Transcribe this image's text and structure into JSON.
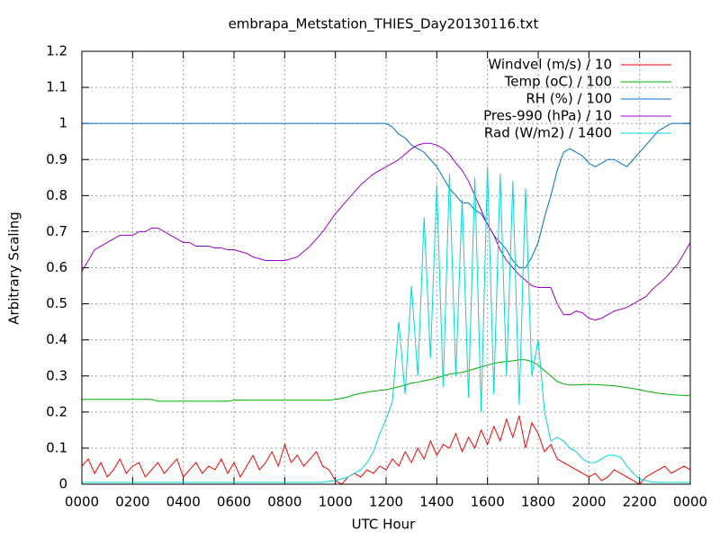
{
  "chart_data": {
    "type": "line",
    "title": "embrapa_Metstation_THIES_Day20130116.txt",
    "x_label": "UTC Hour",
    "y_label": "Arbitrary Scaling",
    "xlim": [
      0,
      24
    ],
    "xticks": [
      {
        "value": 0,
        "label": "0000"
      },
      {
        "value": 2,
        "label": "0200"
      },
      {
        "value": 4,
        "label": "0400"
      },
      {
        "value": 6,
        "label": "0600"
      },
      {
        "value": 8,
        "label": "0800"
      },
      {
        "value": 10,
        "label": "1000"
      },
      {
        "value": 12,
        "label": "1200"
      },
      {
        "value": 14,
        "label": "1400"
      },
      {
        "value": 16,
        "label": "1600"
      },
      {
        "value": 18,
        "label": "1800"
      },
      {
        "value": 20,
        "label": "2000"
      },
      {
        "value": 22,
        "label": "2200"
      },
      {
        "value": 24,
        "label": "0000"
      }
    ],
    "ylim": [
      0,
      1.2
    ],
    "yticks": [
      0,
      0.1,
      0.2,
      0.3,
      0.4,
      0.5,
      0.6,
      0.7,
      0.8,
      0.9,
      1,
      1.1,
      1.2
    ],
    "grid": true,
    "legend": "top-right",
    "x": [
      0,
      0.25,
      0.5,
      0.75,
      1,
      1.25,
      1.5,
      1.75,
      2,
      2.25,
      2.5,
      2.75,
      3,
      3.25,
      3.5,
      3.75,
      4,
      4.25,
      4.5,
      4.75,
      5,
      5.25,
      5.5,
      5.75,
      6,
      6.25,
      6.5,
      6.75,
      7,
      7.25,
      7.5,
      7.75,
      8,
      8.25,
      8.5,
      8.75,
      9,
      9.25,
      9.5,
      9.75,
      10,
      10.25,
      10.5,
      10.75,
      11,
      11.25,
      11.5,
      11.75,
      12,
      12.25,
      12.5,
      12.75,
      13,
      13.25,
      13.5,
      13.75,
      14,
      14.25,
      14.5,
      14.75,
      15,
      15.25,
      15.5,
      15.75,
      16,
      16.25,
      16.5,
      16.75,
      17,
      17.25,
      17.5,
      17.75,
      18,
      18.25,
      18.5,
      18.75,
      19,
      19.25,
      19.5,
      19.75,
      20,
      20.25,
      20.5,
      20.75,
      21,
      21.25,
      21.5,
      21.75,
      22,
      22.25,
      22.5,
      22.75,
      23,
      23.25,
      23.5,
      23.75,
      24
    ],
    "series": [
      {
        "name": "Windvel (m/s) / 10",
        "color": "#ff0000",
        "values": [
          0.05,
          0.07,
          0.03,
          0.06,
          0.02,
          0.04,
          0.07,
          0.03,
          0.05,
          0.06,
          0.02,
          0.04,
          0.06,
          0.03,
          0.05,
          0.07,
          0.02,
          0.04,
          0.06,
          0.03,
          0.05,
          0.04,
          0.07,
          0.03,
          0.06,
          0.02,
          0.05,
          0.08,
          0.04,
          0.06,
          0.09,
          0.05,
          0.11,
          0.06,
          0.08,
          0.05,
          0.07,
          0.09,
          0.05,
          0.04,
          0.01,
          0,
          0.02,
          0.03,
          0.02,
          0.04,
          0.03,
          0.05,
          0.04,
          0.07,
          0.05,
          0.09,
          0.06,
          0.1,
          0.07,
          0.12,
          0.08,
          0.11,
          0.1,
          0.14,
          0.09,
          0.13,
          0.1,
          0.15,
          0.11,
          0.16,
          0.12,
          0.18,
          0.13,
          0.19,
          0.1,
          0.17,
          0.14,
          0.09,
          0.11,
          0.07,
          0.06,
          0.05,
          0.04,
          0.03,
          0.02,
          0.03,
          0.01,
          0.02,
          0.04,
          0.03,
          0.02,
          0.01,
          0,
          0.02,
          0.03,
          0.04,
          0.05,
          0.03,
          0.04,
          0.05,
          0.04
        ]
      },
      {
        "name": "Temp (oC) / 100",
        "color": "#00b000",
        "values": [
          0.235,
          0.235,
          0.235,
          0.235,
          0.235,
          0.235,
          0.235,
          0.235,
          0.235,
          0.235,
          0.235,
          0.235,
          0.23,
          0.23,
          0.23,
          0.23,
          0.23,
          0.23,
          0.23,
          0.23,
          0.23,
          0.23,
          0.23,
          0.23,
          0.233,
          0.233,
          0.233,
          0.233,
          0.233,
          0.233,
          0.233,
          0.233,
          0.233,
          0.233,
          0.233,
          0.233,
          0.233,
          0.233,
          0.233,
          0.233,
          0.235,
          0.238,
          0.242,
          0.248,
          0.252,
          0.255,
          0.258,
          0.26,
          0.262,
          0.266,
          0.27,
          0.275,
          0.28,
          0.283,
          0.287,
          0.29,
          0.295,
          0.3,
          0.305,
          0.308,
          0.31,
          0.315,
          0.32,
          0.325,
          0.33,
          0.335,
          0.338,
          0.34,
          0.342,
          0.345,
          0.345,
          0.34,
          0.33,
          0.315,
          0.3,
          0.285,
          0.278,
          0.275,
          0.275,
          0.276,
          0.277,
          0.276,
          0.275,
          0.274,
          0.273,
          0.27,
          0.268,
          0.265,
          0.262,
          0.258,
          0.255,
          0.252,
          0.25,
          0.248,
          0.247,
          0.246,
          0.245
        ]
      },
      {
        "name": "RH (%) / 100",
        "color": "#0070d0",
        "values": [
          1,
          1,
          1,
          1,
          1,
          1,
          1,
          1,
          1,
          1,
          1,
          1,
          1,
          1,
          1,
          1,
          1,
          1,
          1,
          1,
          1,
          1,
          1,
          1,
          1,
          1,
          1,
          1,
          1,
          1,
          1,
          1,
          1,
          1,
          1,
          1,
          1,
          1,
          1,
          1,
          1,
          1,
          1,
          1,
          1,
          1,
          1,
          1,
          1,
          0.99,
          0.97,
          0.96,
          0.94,
          0.93,
          0.92,
          0.9,
          0.88,
          0.85,
          0.82,
          0.8,
          0.78,
          0.78,
          0.76,
          0.75,
          0.72,
          0.69,
          0.67,
          0.65,
          0.62,
          0.6,
          0.6,
          0.63,
          0.67,
          0.74,
          0.8,
          0.87,
          0.92,
          0.93,
          0.92,
          0.91,
          0.89,
          0.88,
          0.89,
          0.9,
          0.9,
          0.89,
          0.88,
          0.9,
          0.92,
          0.94,
          0.96,
          0.98,
          0.99,
          1,
          1,
          1,
          1
        ]
      },
      {
        "name": "Pres-990 (hPa) / 10",
        "color": "#a000d0",
        "values": [
          0.59,
          0.62,
          0.65,
          0.66,
          0.67,
          0.68,
          0.69,
          0.69,
          0.69,
          0.7,
          0.7,
          0.71,
          0.71,
          0.7,
          0.69,
          0.68,
          0.67,
          0.67,
          0.66,
          0.66,
          0.66,
          0.655,
          0.655,
          0.65,
          0.65,
          0.645,
          0.64,
          0.63,
          0.625,
          0.62,
          0.62,
          0.62,
          0.62,
          0.625,
          0.63,
          0.645,
          0.66,
          0.68,
          0.7,
          0.725,
          0.75,
          0.77,
          0.79,
          0.81,
          0.83,
          0.845,
          0.86,
          0.87,
          0.88,
          0.89,
          0.9,
          0.915,
          0.93,
          0.94,
          0.945,
          0.945,
          0.94,
          0.93,
          0.915,
          0.89,
          0.87,
          0.84,
          0.8,
          0.76,
          0.72,
          0.69,
          0.65,
          0.62,
          0.6,
          0.58,
          0.565,
          0.55,
          0.545,
          0.545,
          0.545,
          0.5,
          0.47,
          0.47,
          0.48,
          0.475,
          0.46,
          0.455,
          0.46,
          0.47,
          0.48,
          0.485,
          0.49,
          0.5,
          0.51,
          0.52,
          0.54,
          0.555,
          0.57,
          0.59,
          0.61,
          0.64,
          0.67
        ]
      },
      {
        "name": "Rad (W/m2) / 1400",
        "color": "#00d8d8",
        "values": [
          0.005,
          0.005,
          0.005,
          0.005,
          0.005,
          0.005,
          0.005,
          0.005,
          0.005,
          0.005,
          0.005,
          0.005,
          0.005,
          0.005,
          0.005,
          0.005,
          0.005,
          0.005,
          0.005,
          0.005,
          0.005,
          0.005,
          0.005,
          0.005,
          0.005,
          0.005,
          0.005,
          0.005,
          0.005,
          0.005,
          0.005,
          0.005,
          0.005,
          0.005,
          0.005,
          0.005,
          0.005,
          0.005,
          0.005,
          0.008,
          0.01,
          0.015,
          0.02,
          0.03,
          0.04,
          0.06,
          0.09,
          0.14,
          0.18,
          0.23,
          0.45,
          0.25,
          0.55,
          0.3,
          0.74,
          0.35,
          0.83,
          0.27,
          0.86,
          0.3,
          0.79,
          0.24,
          0.85,
          0.2,
          0.88,
          0.25,
          0.86,
          0.3,
          0.84,
          0.22,
          0.82,
          0.3,
          0.4,
          0.2,
          0.12,
          0.13,
          0.12,
          0.1,
          0.09,
          0.07,
          0.06,
          0.06,
          0.07,
          0.08,
          0.08,
          0.075,
          0.05,
          0.03,
          0.015,
          0.01,
          0.006,
          0.005,
          0.005,
          0.005,
          0.005,
          0.005,
          0.005
        ]
      }
    ]
  }
}
